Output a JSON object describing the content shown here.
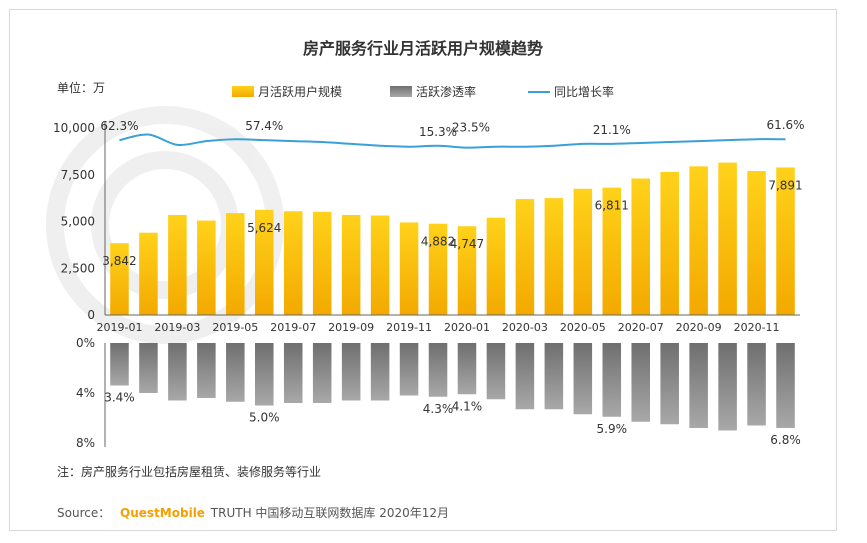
{
  "header": {
    "unit_label": "单位：万"
  },
  "legend": {
    "items": [
      {
        "label": "月活跃用户规模",
        "color": "#f5b800",
        "kind": "bar"
      },
      {
        "label": "活跃渗透率",
        "color": "#8a8a8a",
        "kind": "bar"
      },
      {
        "label": "同比增长率",
        "color": "#3aa0d8",
        "kind": "line"
      }
    ]
  },
  "chart_data": {
    "type": "bar",
    "title": "房产服务行业月活跃用户规模趋势",
    "categories": [
      "2019-01",
      "2019-02",
      "2019-03",
      "2019-04",
      "2019-05",
      "2019-06",
      "2019-07",
      "2019-08",
      "2019-09",
      "2019-10",
      "2019-11",
      "2019-12",
      "2020-01",
      "2020-02",
      "2020-03",
      "2020-04",
      "2020-05",
      "2020-06",
      "2020-07",
      "2020-08",
      "2020-09",
      "2020-10",
      "2020-11",
      "2020-12"
    ],
    "x_tick_labels": [
      "2019-01",
      "2019-03",
      "2019-05",
      "2019-07",
      "2019-09",
      "2019-11",
      "2020-01",
      "2020-03",
      "2020-05",
      "2020-07",
      "2020-09",
      "2020-11"
    ],
    "ylim": [
      0,
      10000
    ],
    "y_ticks": [
      "0",
      "2,500",
      "5,000",
      "7,500",
      "10,000"
    ],
    "penetration_ylim": [
      0,
      8
    ],
    "penetration_ticks": [
      "0%",
      "4%",
      "8%"
    ],
    "series": [
      {
        "name": "月活跃用户规模",
        "values": [
          3842,
          4400,
          5350,
          5050,
          5450,
          5624,
          5550,
          5520,
          5350,
          5320,
          4950,
          4882,
          4747,
          5200,
          6200,
          6250,
          6750,
          6811,
          7300,
          7650,
          7950,
          8150,
          7700,
          7891
        ],
        "labels": [
          {
            "index": 0,
            "text": "3,842"
          },
          {
            "index": 5,
            "text": "5,624"
          },
          {
            "index": 11,
            "text": "4,882"
          },
          {
            "index": 12,
            "text": "4,747"
          },
          {
            "index": 17,
            "text": "6,811"
          },
          {
            "index": 23,
            "text": "7,891"
          }
        ]
      },
      {
        "name": "活跃渗透率",
        "values": [
          3.4,
          4.0,
          4.6,
          4.4,
          4.7,
          5.0,
          4.8,
          4.8,
          4.6,
          4.6,
          4.2,
          4.3,
          4.1,
          4.5,
          5.3,
          5.3,
          5.7,
          5.9,
          6.3,
          6.5,
          6.8,
          7.0,
          6.6,
          6.8
        ],
        "labels": [
          {
            "index": 0,
            "text": "3.4%"
          },
          {
            "index": 5,
            "text": "5.0%"
          },
          {
            "index": 11,
            "text": "4.3%"
          },
          {
            "index": 12,
            "text": "4.1%"
          },
          {
            "index": 17,
            "text": "5.9%"
          },
          {
            "index": 23,
            "text": "6.8%"
          }
        ]
      },
      {
        "name": "同比增长率",
        "line_y": [
          9350,
          9650,
          9100,
          9300,
          9400,
          9350,
          9300,
          9250,
          9150,
          9050,
          9000,
          9050,
          8950,
          9000,
          9000,
          9050,
          9150,
          9150,
          9200,
          9250,
          9300,
          9350,
          9400,
          9400
        ],
        "labels": [
          {
            "index": 0,
            "text": "62.3%"
          },
          {
            "index": 5,
            "text": "57.4%"
          },
          {
            "index": 11,
            "text": "15.3%"
          },
          {
            "index": 12,
            "text": "23.5%"
          },
          {
            "index": 17,
            "text": "21.1%"
          },
          {
            "index": 23,
            "text": "61.6%"
          }
        ]
      }
    ],
    "grid": false,
    "legend_position": "top"
  },
  "footer": {
    "note": "注：房产服务行业包括房屋租赁、装修服务等行业",
    "source_prefix": "Source：",
    "source_brand": "QuestMobile",
    "source_rest": "TRUTH 中国移动互联网数据库 2020年12月"
  }
}
